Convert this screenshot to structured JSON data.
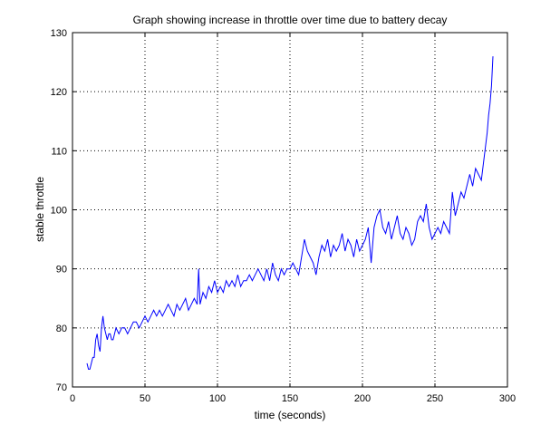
{
  "chart_data": {
    "type": "line",
    "title": "Graph showing increase in throttle over time due to battery decay",
    "xlabel": "time (seconds)",
    "ylabel": "stable throttle",
    "xlim": [
      0,
      300
    ],
    "ylim": [
      70,
      130
    ],
    "xticks": [
      0,
      50,
      100,
      150,
      200,
      250,
      300
    ],
    "yticks": [
      70,
      80,
      90,
      100,
      110,
      120,
      130
    ],
    "grid": true,
    "line_color": "#0000ff",
    "series": [
      {
        "x": [
          10,
          11,
          12,
          13,
          14,
          15,
          16,
          17,
          18,
          19,
          20,
          21,
          22,
          23,
          24,
          25,
          26,
          27,
          28,
          29,
          30,
          32,
          34,
          36,
          38,
          40,
          42,
          44,
          46,
          48,
          50,
          52,
          54,
          56,
          58,
          60,
          62,
          64,
          66,
          68,
          70,
          72,
          74,
          76,
          78,
          80,
          82,
          84,
          86,
          87,
          88,
          90,
          92,
          94,
          96,
          98,
          100,
          102,
          104,
          106,
          108,
          110,
          112,
          114,
          116,
          118,
          120,
          122,
          124,
          126,
          128,
          130,
          132,
          134,
          136,
          138,
          140,
          142,
          144,
          146,
          148,
          150,
          152,
          154,
          156,
          158,
          160,
          162,
          164,
          166,
          168,
          170,
          172,
          174,
          176,
          178,
          180,
          182,
          184,
          186,
          188,
          190,
          192,
          194,
          196,
          198,
          200,
          202,
          204,
          206,
          208,
          210,
          212,
          214,
          216,
          218,
          220,
          222,
          224,
          226,
          228,
          230,
          232,
          234,
          236,
          238,
          240,
          242,
          244,
          246,
          248,
          250,
          252,
          254,
          256,
          258,
          260,
          262,
          264,
          266,
          268,
          270,
          272,
          274,
          276,
          278,
          280,
          282,
          284,
          286,
          287,
          288,
          289,
          290
        ],
        "y": [
          74,
          73,
          73,
          74,
          75,
          75,
          78,
          79,
          77,
          76,
          80,
          82,
          80,
          79,
          78,
          79,
          79,
          78,
          78,
          79,
          80,
          79,
          80,
          80,
          79,
          80,
          81,
          81,
          80,
          81,
          82,
          81,
          82,
          83,
          82,
          83,
          82,
          83,
          84,
          83,
          82,
          84,
          83,
          84,
          85,
          83,
          84,
          85,
          84,
          90,
          84,
          86,
          85,
          87,
          86,
          88,
          86,
          87,
          86,
          88,
          87,
          88,
          87,
          89,
          87,
          88,
          88,
          89,
          88,
          89,
          90,
          89,
          88,
          90,
          88,
          91,
          89,
          88,
          90,
          89,
          90,
          90,
          91,
          90,
          89,
          92,
          95,
          93,
          92,
          91,
          89,
          92,
          94,
          93,
          95,
          92,
          94,
          93,
          94,
          96,
          93,
          95,
          94,
          92,
          95,
          93,
          94,
          95,
          97,
          91,
          97,
          99,
          100,
          97,
          96,
          98,
          95,
          97,
          99,
          96,
          95,
          97,
          96,
          94,
          95,
          98,
          99,
          98,
          101,
          97,
          95,
          96,
          97,
          96,
          98,
          97,
          96,
          103,
          99,
          101,
          103,
          102,
          104,
          106,
          104,
          107,
          106,
          105,
          109,
          113,
          116,
          118,
          121,
          126
        ]
      }
    ]
  }
}
